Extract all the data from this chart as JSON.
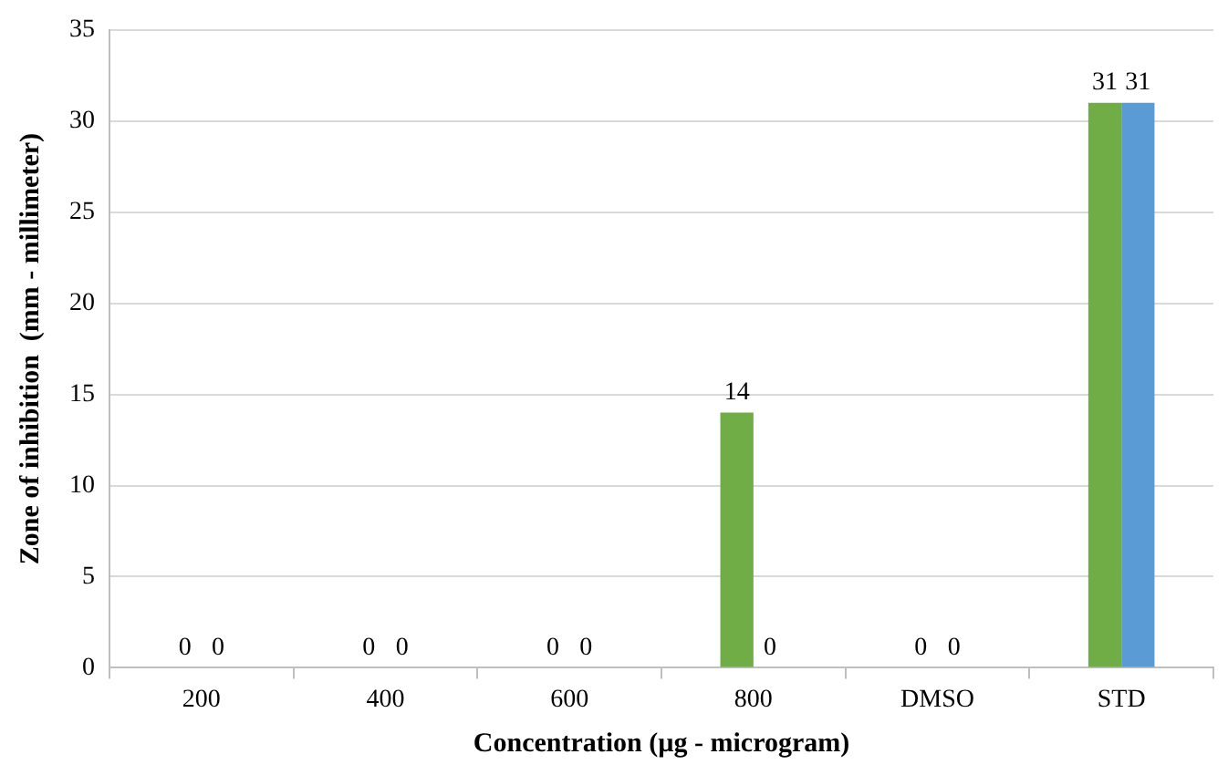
{
  "chart_data": {
    "type": "bar",
    "xlabel": "Concentration (µg - microgram)",
    "ylabel": "Zone of inhibition  (mm - millimeter)",
    "categories": [
      "200",
      "400",
      "600",
      "800",
      "DMSO",
      "STD"
    ],
    "series": [
      {
        "color": "#70ad47",
        "values": [
          0,
          0,
          0,
          14,
          0,
          31
        ]
      },
      {
        "color": "#5b9bd5",
        "values": [
          0,
          0,
          0,
          0,
          0,
          31
        ]
      }
    ],
    "ylim": [
      0,
      35
    ],
    "yticks": [
      0,
      5,
      10,
      15,
      20,
      25,
      30,
      35
    ],
    "grid": "y",
    "data_labels": true,
    "legend": false
  }
}
